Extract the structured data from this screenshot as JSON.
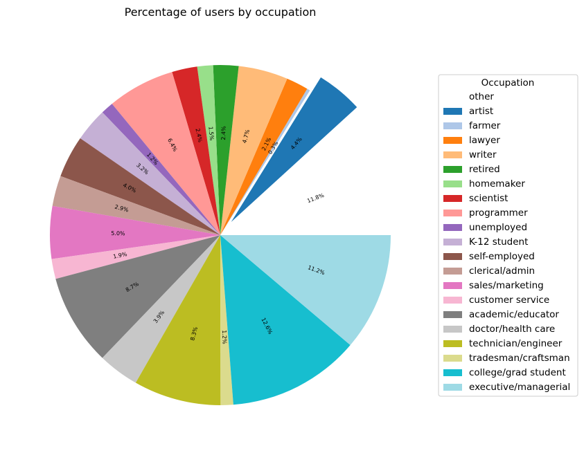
{
  "chart_data": {
    "type": "pie",
    "title": "Percentage of users by occupation",
    "legend_title": "Occupation",
    "legend_position": "right",
    "start_angle_deg": 0,
    "direction": "counterclockwise",
    "slices": [
      {
        "label": "other",
        "value": 11.8,
        "pct_label": "11.8%",
        "color": "#ffffff",
        "explode": 0
      },
      {
        "label": "artist",
        "value": 4.4,
        "pct_label": "4.4%",
        "color": "#1f77b4",
        "explode": 0.1
      },
      {
        "label": "farmer",
        "value": 0.3,
        "pct_label": "0.3%",
        "color": "#aec7e8",
        "explode": 0
      },
      {
        "label": "lawyer",
        "value": 2.1,
        "pct_label": "2.1%",
        "color": "#ff7f0e",
        "explode": 0
      },
      {
        "label": "writer",
        "value": 4.7,
        "pct_label": "4.7%",
        "color": "#ffbb78",
        "explode": 0
      },
      {
        "label": "retired",
        "value": 2.4,
        "pct_label": "2.4%",
        "color": "#2ca02c",
        "explode": 0
      },
      {
        "label": "homemaker",
        "value": 1.5,
        "pct_label": "1.5%",
        "color": "#98df8a",
        "explode": 0
      },
      {
        "label": "scientist",
        "value": 2.4,
        "pct_label": "2.4%",
        "color": "#d62728",
        "explode": 0
      },
      {
        "label": "programmer",
        "value": 6.4,
        "pct_label": "6.4%",
        "color": "#ff9896",
        "explode": 0
      },
      {
        "label": "unemployed",
        "value": 1.2,
        "pct_label": "1.2%",
        "color": "#9467bd",
        "explode": 0
      },
      {
        "label": "K-12 student",
        "value": 3.2,
        "pct_label": "3.2%",
        "color": "#c5b0d5",
        "explode": 0
      },
      {
        "label": "self-employed",
        "value": 4.0,
        "pct_label": "4.0%",
        "color": "#8c564b",
        "explode": 0
      },
      {
        "label": "clerical/admin",
        "value": 2.9,
        "pct_label": "2.9%",
        "color": "#c49c94",
        "explode": 0
      },
      {
        "label": "sales/marketing",
        "value": 5.0,
        "pct_label": "5.0%",
        "color": "#e377c2",
        "explode": 0
      },
      {
        "label": "customer service",
        "value": 1.9,
        "pct_label": "1.9%",
        "color": "#f7b6d2",
        "explode": 0
      },
      {
        "label": "academic/educator",
        "value": 8.7,
        "pct_label": "8.7%",
        "color": "#7f7f7f",
        "explode": 0
      },
      {
        "label": "doctor/health care",
        "value": 3.9,
        "pct_label": "3.9%",
        "color": "#c7c7c7",
        "explode": 0
      },
      {
        "label": "technician/engineer",
        "value": 8.3,
        "pct_label": "8.3%",
        "color": "#bcbd22",
        "explode": 0
      },
      {
        "label": "tradesman/craftsman",
        "value": 1.2,
        "pct_label": "1.2%",
        "color": "#dbdb8d",
        "explode": 0
      },
      {
        "label": "college/grad student",
        "value": 12.6,
        "pct_label": "12.6%",
        "color": "#17becf",
        "explode": 0
      },
      {
        "label": "executive/managerial",
        "value": 11.2,
        "pct_label": "11.2%",
        "color": "#9edae5",
        "explode": 0
      }
    ]
  }
}
